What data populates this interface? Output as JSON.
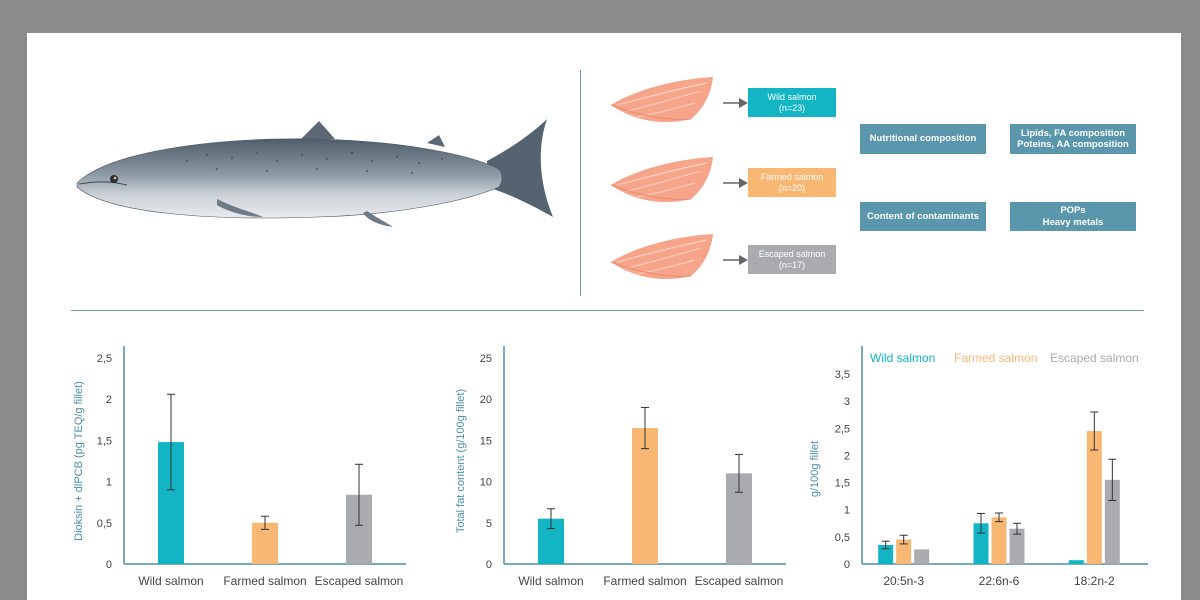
{
  "diagram": {
    "fillet_groups": [
      {
        "key": "wild",
        "label": "Wild salmon",
        "count": "(n=23)",
        "color": "#13b5c4"
      },
      {
        "key": "farmed",
        "label": "Farmed salmon",
        "count": "(n=20)",
        "color": "#f9b774"
      },
      {
        "key": "escaped",
        "label": "Escaped salmon",
        "count": "(n=17)",
        "color": "#a9abaf"
      }
    ],
    "analyses": [
      {
        "title": "Nutritional composition",
        "detail_line1": "Lipids, FA composition",
        "detail_line2": "Poteins, AA composition"
      },
      {
        "title": "Content of contaminants",
        "detail_line1": "POPs",
        "detail_line2": "Heavy metals"
      }
    ],
    "accent_color": "#5b97ac"
  },
  "chart_data": [
    {
      "type": "bar",
      "categories": [
        "Wild salmon",
        "Farmed salmon",
        "Escaped salmon"
      ],
      "values": [
        1.48,
        0.5,
        0.84
      ],
      "errors": [
        0.58,
        0.08,
        0.37
      ],
      "colors": [
        "#13b5c4",
        "#f9b774",
        "#a9abaf"
      ],
      "ylabel": "Dioksin + dlPCB (pg TEQ/g fillet)",
      "ylim": [
        0,
        2.5
      ],
      "yticks": [
        "0",
        "0,5",
        "1",
        "1,5",
        "2",
        "2,5"
      ],
      "grid": false
    },
    {
      "type": "bar",
      "categories": [
        "Wild salmon",
        "Farmed salmon",
        "Escaped salmon"
      ],
      "values": [
        5.5,
        16.5,
        11.0
      ],
      "errors": [
        1.2,
        2.5,
        2.3
      ],
      "colors": [
        "#13b5c4",
        "#f9b774",
        "#a9abaf"
      ],
      "ylabel": "Total fat content (g/100g fillet)",
      "ylim": [
        0,
        25
      ],
      "yticks": [
        "0",
        "5",
        "10",
        "15",
        "20",
        "25"
      ],
      "grid": false
    },
    {
      "type": "bar",
      "categories": [
        "20:5n-3",
        "22:6n-6",
        "18:2n-2"
      ],
      "series": [
        {
          "name": "Wild salmon",
          "values": [
            0.35,
            0.75,
            0.07
          ],
          "errors": [
            0.07,
            0.18,
            0.0
          ],
          "color": "#13b5c4"
        },
        {
          "name": "Farmed salmon",
          "values": [
            0.45,
            0.86,
            2.45
          ],
          "errors": [
            0.08,
            0.08,
            0.35
          ],
          "color": "#f9b774"
        },
        {
          "name": "Escaped salmon",
          "values": [
            0.27,
            0.65,
            1.55
          ],
          "errors": [
            0.0,
            0.1,
            0.38
          ],
          "color": "#a9abaf"
        }
      ],
      "ylabel": "g/100g fillet",
      "ylim": [
        0,
        3.5
      ],
      "yticks": [
        "0",
        "0,5",
        "1",
        "1,5",
        "2",
        "2,5",
        "3",
        "3,5"
      ],
      "legend_position": "top",
      "grid": false
    }
  ]
}
